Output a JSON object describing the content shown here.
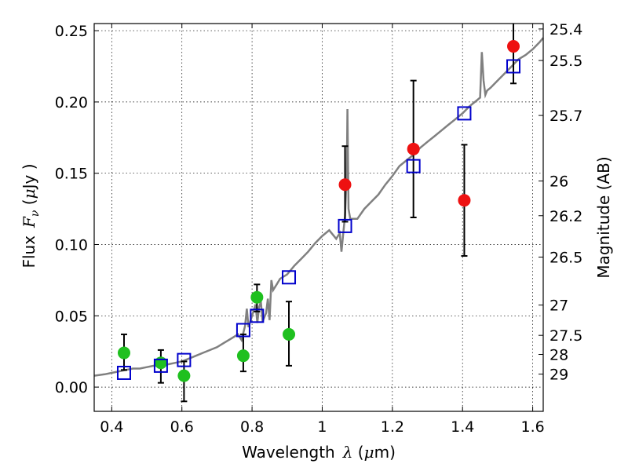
{
  "chart_data": {
    "type": "scatter",
    "title": "",
    "xlabel": "Wavelength",
    "xlabel_symbol": "λ",
    "xlabel_unit_open": " (",
    "xlabel_unit_mu": "μ",
    "xlabel_unit_rest": "m)",
    "ylabel": "Flux",
    "ylabel_symbol": "F",
    "ylabel_symbol_sub": "ν",
    "ylabel_unit_open": "  (",
    "ylabel_unit_mu": "μ",
    "ylabel_unit_rest": "Jy )",
    "y2label": "Magnitude (AB)",
    "xlim": [
      0.35,
      1.63
    ],
    "ylim": [
      -0.017,
      0.255
    ],
    "grid": true,
    "x_ticks": [
      0.4,
      0.6,
      0.8,
      1.0,
      1.2,
      1.4,
      1.6
    ],
    "x_tick_labels": [
      "0.4",
      "0.6",
      "0.8",
      "1",
      "1.2",
      "1.4",
      "1.6"
    ],
    "y_ticks": [
      0.0,
      0.05,
      0.1,
      0.15,
      0.2,
      0.25
    ],
    "y_tick_labels": [
      "0.00",
      "0.05",
      "0.10",
      "0.15",
      "0.20",
      "0.25"
    ],
    "y2_ticks": [
      25.4,
      25.5,
      25.7,
      26,
      26.2,
      26.5,
      27,
      27.5,
      28,
      29
    ],
    "y2_tick_labels": [
      "25.4",
      "25.5",
      "25.7",
      "26",
      "26.2",
      "26.5",
      "27",
      "27.5",
      "28",
      "29"
    ],
    "series": [
      {
        "name": "model spectrum",
        "kind": "line",
        "color": "#808080",
        "x": [
          0.35,
          0.38,
          0.4,
          0.42,
          0.44,
          0.46,
          0.48,
          0.5,
          0.52,
          0.54,
          0.56,
          0.58,
          0.6,
          0.62,
          0.64,
          0.66,
          0.68,
          0.7,
          0.72,
          0.74,
          0.76,
          0.77,
          0.78,
          0.785,
          0.79,
          0.8,
          0.81,
          0.815,
          0.82,
          0.825,
          0.83,
          0.84,
          0.845,
          0.85,
          0.855,
          0.86,
          0.87,
          0.88,
          0.9,
          0.92,
          0.94,
          0.96,
          0.98,
          1.0,
          1.02,
          1.04,
          1.05,
          1.055,
          1.06,
          1.065,
          1.07,
          1.072,
          1.075,
          1.08,
          1.1,
          1.12,
          1.14,
          1.16,
          1.18,
          1.2,
          1.22,
          1.24,
          1.26,
          1.28,
          1.3,
          1.32,
          1.34,
          1.36,
          1.38,
          1.4,
          1.42,
          1.44,
          1.45,
          1.455,
          1.46,
          1.465,
          1.47,
          1.48,
          1.5,
          1.52,
          1.54,
          1.56,
          1.58,
          1.6,
          1.62,
          1.63
        ],
        "y": [
          0.008,
          0.009,
          0.01,
          0.011,
          0.012,
          0.013,
          0.013,
          0.014,
          0.015,
          0.015,
          0.016,
          0.017,
          0.018,
          0.02,
          0.022,
          0.024,
          0.026,
          0.028,
          0.031,
          0.034,
          0.037,
          0.033,
          0.043,
          0.055,
          0.042,
          0.05,
          0.058,
          0.045,
          0.056,
          0.06,
          0.046,
          0.052,
          0.062,
          0.047,
          0.075,
          0.068,
          0.072,
          0.076,
          0.079,
          0.085,
          0.09,
          0.095,
          0.101,
          0.106,
          0.11,
          0.104,
          0.108,
          0.095,
          0.108,
          0.12,
          0.15,
          0.195,
          0.125,
          0.118,
          0.118,
          0.125,
          0.13,
          0.135,
          0.142,
          0.148,
          0.155,
          0.159,
          0.163,
          0.168,
          0.172,
          0.176,
          0.18,
          0.184,
          0.188,
          0.192,
          0.197,
          0.201,
          0.203,
          0.235,
          0.215,
          0.205,
          0.208,
          0.21,
          0.215,
          0.22,
          0.225,
          0.23,
          0.233,
          0.237,
          0.242,
          0.245
        ]
      },
      {
        "name": "observed (green)",
        "kind": "points",
        "color": "#1fc01f",
        "x": [
          0.435,
          0.54,
          0.606,
          0.775,
          0.814,
          0.905
        ],
        "y": [
          0.024,
          0.017,
          0.008,
          0.022,
          0.063,
          0.037
        ],
        "err_low": [
          0.012,
          0.014,
          0.018,
          0.011,
          0.01,
          0.022
        ],
        "err_high": [
          0.013,
          0.009,
          0.01,
          0.015,
          0.009,
          0.023
        ]
      },
      {
        "name": "observed (red)",
        "kind": "points",
        "color": "#ee1111",
        "x": [
          1.065,
          1.26,
          1.405,
          1.545
        ],
        "y": [
          0.142,
          0.167,
          0.131,
          0.239
        ],
        "err_low": [
          0.026,
          0.048,
          0.039,
          0.026
        ],
        "err_high": [
          0.027,
          0.048,
          0.039,
          0.017
        ]
      },
      {
        "name": "model photometry",
        "kind": "squares",
        "color": "#0000cc",
        "x": [
          0.435,
          0.54,
          0.606,
          0.775,
          0.814,
          0.905,
          1.065,
          1.26,
          1.405,
          1.545
        ],
        "y": [
          0.01,
          0.015,
          0.019,
          0.04,
          0.05,
          0.077,
          0.113,
          0.155,
          0.192,
          0.225
        ]
      }
    ]
  }
}
